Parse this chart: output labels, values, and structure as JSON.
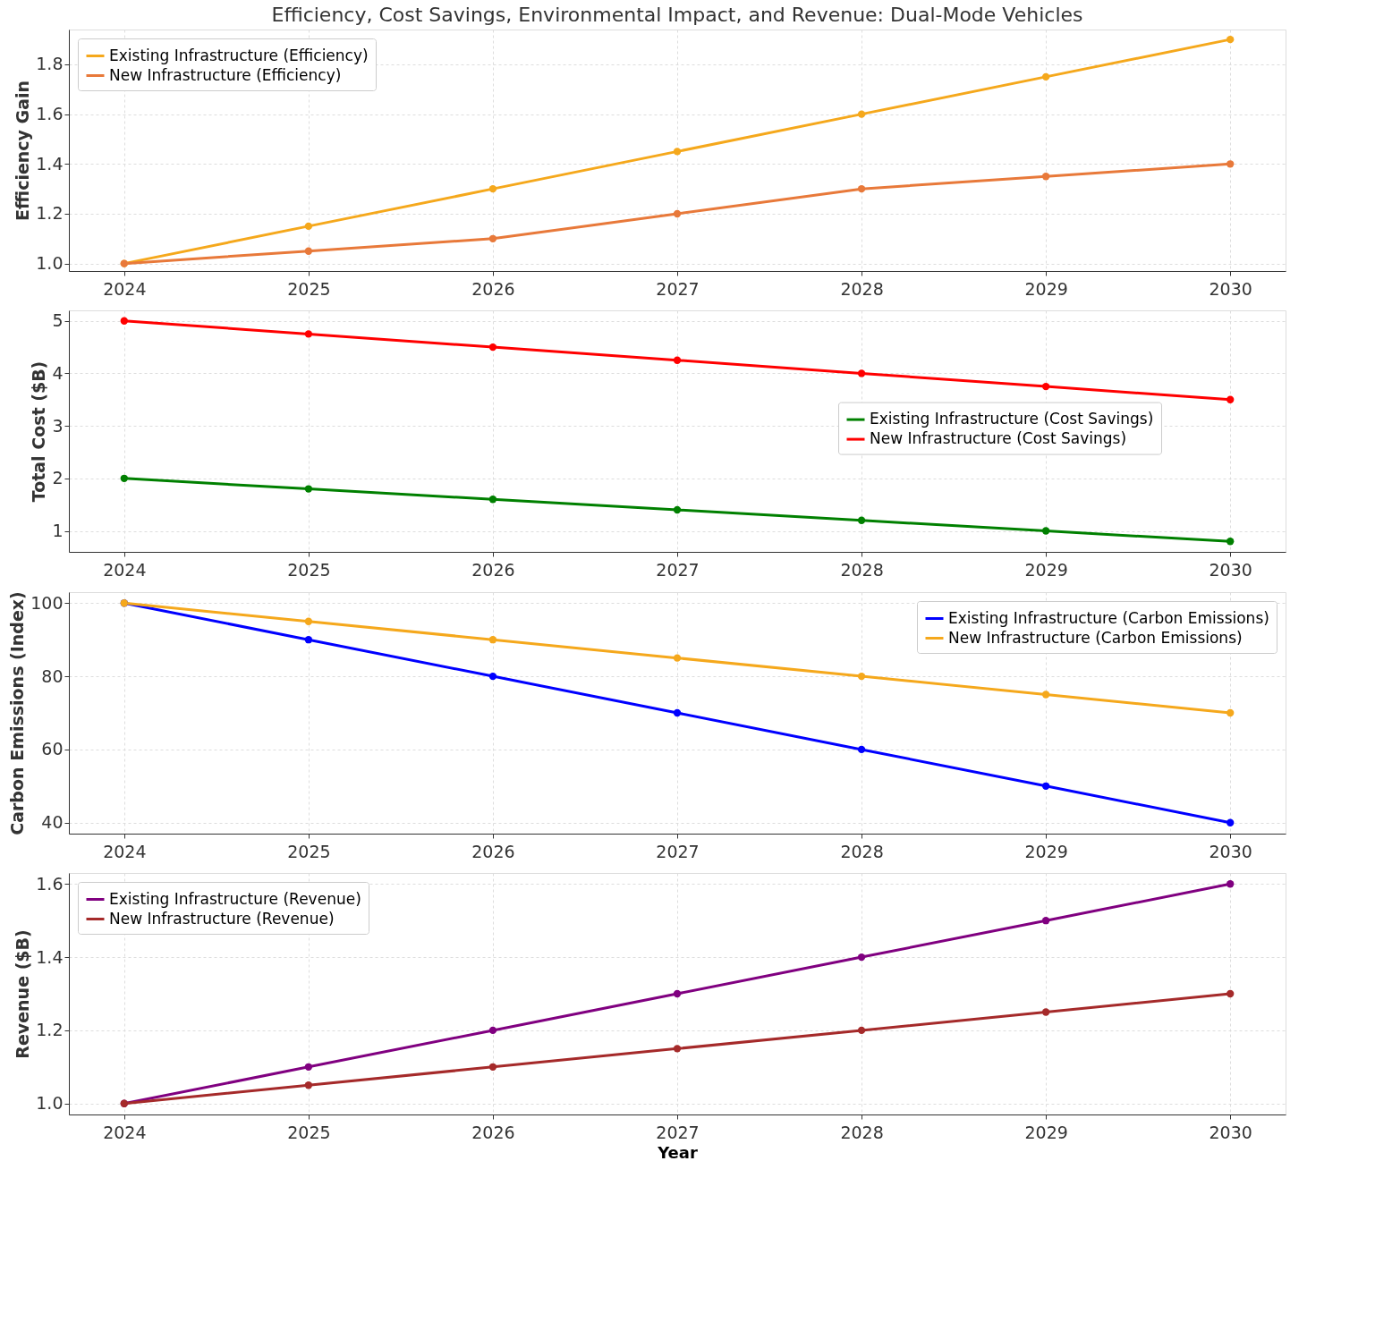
{
  "chart_data": [
    {
      "type": "line",
      "title": "Efficiency, Cost Savings, Environmental Impact, and Revenue: Dual-Mode Vehicles",
      "ylabel": "Efficiency Gain",
      "x": [
        2024,
        2025,
        2026,
        2027,
        2028,
        2029,
        2030
      ],
      "xlim": [
        2023.7,
        2030.3
      ],
      "xticks": [
        2024,
        2025,
        2026,
        2027,
        2028,
        2029,
        2030
      ],
      "ylim": [
        0.97,
        1.94
      ],
      "yticks": [
        {
          "value": 1.0,
          "label": "1.0"
        },
        {
          "value": 1.2,
          "label": "1.2"
        },
        {
          "value": 1.4,
          "label": "1.4"
        },
        {
          "value": 1.6,
          "label": "1.6"
        },
        {
          "value": 1.8,
          "label": "1.8"
        }
      ],
      "grid": true,
      "marker": "circle",
      "line_style": "solid",
      "legend": "top left",
      "series": [
        {
          "name": "Existing Infrastructure (Efficiency)",
          "color": "#f5a81c",
          "values": [
            1.0,
            1.15,
            1.3,
            1.45,
            1.6,
            1.75,
            1.9
          ]
        },
        {
          "name": "New Infrastructure (Efficiency)",
          "color": "#e8793a",
          "values": [
            1.0,
            1.05,
            1.1,
            1.2,
            1.3,
            1.35,
            1.4
          ]
        }
      ]
    },
    {
      "type": "line",
      "ylabel": "Total Cost ($B)",
      "x": [
        2024,
        2025,
        2026,
        2027,
        2028,
        2029,
        2030
      ],
      "xlim": [
        2023.7,
        2030.3
      ],
      "xticks": [
        2024,
        2025,
        2026,
        2027,
        2028,
        2029,
        2030
      ],
      "ylim": [
        0.6,
        5.2
      ],
      "yticks": [
        1,
        2,
        3,
        4,
        5
      ],
      "grid": true,
      "marker": "circle",
      "line_style": "solid",
      "legend": "right",
      "series": [
        {
          "name": "Existing Infrastructure (Cost Savings)",
          "color": "#008000",
          "values": [
            2.0,
            1.8,
            1.6,
            1.4,
            1.2,
            1.0,
            0.8
          ]
        },
        {
          "name": "New Infrastructure (Cost Savings)",
          "color": "#ff0000",
          "values": [
            5.0,
            4.75,
            4.5,
            4.25,
            4.0,
            3.75,
            3.5
          ]
        }
      ]
    },
    {
      "type": "line",
      "ylabel": "Carbon Emissions (Index)",
      "x": [
        2024,
        2025,
        2026,
        2027,
        2028,
        2029,
        2030
      ],
      "xlim": [
        2023.7,
        2030.3
      ],
      "xticks": [
        2024,
        2025,
        2026,
        2027,
        2028,
        2029,
        2030
      ],
      "ylim": [
        37,
        103
      ],
      "yticks": [
        40,
        60,
        80,
        100
      ],
      "grid": true,
      "marker": "circle",
      "line_style": "solid",
      "legend": "top right",
      "series": [
        {
          "name": "Existing Infrastructure (Carbon Emissions)",
          "color": "#0000ff",
          "values": [
            100,
            90,
            80,
            70,
            60,
            50,
            40
          ]
        },
        {
          "name": "New Infrastructure (Carbon Emissions)",
          "color": "#f5a81c",
          "values": [
            100,
            95,
            90,
            85,
            80,
            75,
            70
          ]
        }
      ]
    },
    {
      "type": "line",
      "ylabel": "Revenue ($B)",
      "xlabel": "Year",
      "x": [
        2024,
        2025,
        2026,
        2027,
        2028,
        2029,
        2030
      ],
      "xlim": [
        2023.7,
        2030.3
      ],
      "xticks": [
        2024,
        2025,
        2026,
        2027,
        2028,
        2029,
        2030
      ],
      "ylim": [
        0.97,
        1.63
      ],
      "yticks": [
        {
          "value": 1.0,
          "label": "1.0"
        },
        {
          "value": 1.2,
          "label": "1.2"
        },
        {
          "value": 1.4,
          "label": "1.4"
        },
        {
          "value": 1.6,
          "label": "1.6"
        }
      ],
      "grid": true,
      "marker": "circle",
      "line_style": "solid",
      "legend": "top left",
      "series": [
        {
          "name": "Existing Infrastructure (Revenue)",
          "color": "#800080",
          "values": [
            1.0,
            1.1,
            1.2,
            1.3,
            1.4,
            1.5,
            1.6
          ]
        },
        {
          "name": "New Infrastructure (Revenue)",
          "color": "#a52a2a",
          "values": [
            1.0,
            1.05,
            1.1,
            1.15,
            1.2,
            1.25,
            1.3
          ]
        }
      ]
    }
  ]
}
